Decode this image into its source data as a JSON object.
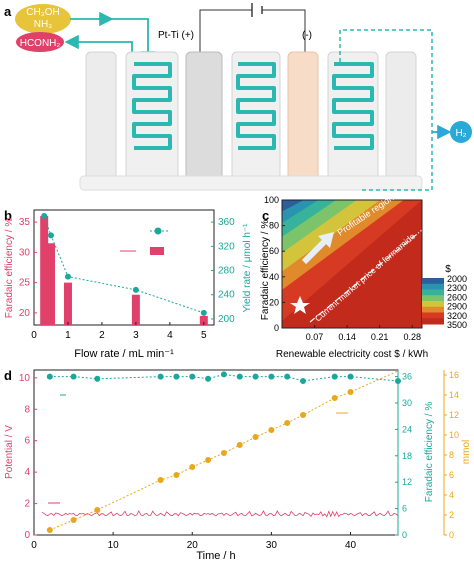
{
  "panels": {
    "a": {
      "label": "a",
      "feed_top": "CH₃OH",
      "feed_bottom": "NH₃",
      "product": "HCONH₂",
      "anode": "Pt-Ti (+)",
      "cathode": "(-)",
      "gas": "H₂",
      "colors": {
        "methanol": "#e8c43a",
        "formamide": "#e0406a",
        "flow": "#2bb8b0",
        "hydrogen": "#2aa8d8"
      }
    },
    "b": {
      "label": "b"
    },
    "c": {
      "label": "c"
    },
    "d": {
      "label": "d"
    }
  },
  "chart_data": [
    {
      "id": "b",
      "type": "bar",
      "x": [
        0.3,
        0.5,
        1,
        3,
        5
      ],
      "categories": [
        "0.3",
        "0.5",
        "1",
        "3",
        "5"
      ],
      "series": [
        {
          "axis": "left",
          "type": "bar",
          "values": [
            36,
            31.5,
            25,
            23,
            19.5
          ],
          "color": "#e0406a"
        },
        {
          "axis": "right",
          "type": "line",
          "values": [
            370,
            338,
            270,
            248,
            210
          ],
          "color": "#1aa89a"
        }
      ],
      "xlabel": "Flow rate / mL min⁻¹",
      "ylabel_left": "Faradaic efficiency / %",
      "ylabel_right": "Yield rate / μmol h⁻¹",
      "xlim": [
        0,
        5.3
      ],
      "ylim_left": [
        18,
        37
      ],
      "ylim_right": [
        190,
        380
      ],
      "xticks": [
        0,
        1,
        2,
        3,
        4,
        5
      ],
      "yticks_left": [
        20,
        25,
        30,
        35
      ],
      "yticks_right": [
        200,
        240,
        280,
        320,
        360
      ]
    },
    {
      "id": "c",
      "type": "heatmap",
      "xlabel": "Renewable electricity cost $ / kWh",
      "ylabel": "Faradaic efficiency / %",
      "xlim": [
        0,
        0.3
      ],
      "ylim": [
        0,
        100
      ],
      "xticks": [
        "0.07",
        "0.14",
        "0.21",
        "0.28"
      ],
      "yticks": [
        "0",
        "20",
        "40",
        "60",
        "80",
        "100"
      ],
      "annotations": [
        "Profitable region",
        "Current market price of formamide"
      ],
      "colorbar_title": "$",
      "colorbar_ticks": [
        "2000",
        "2300",
        "2600",
        "2900",
        "3200",
        "3500"
      ],
      "colorbar_colors": [
        "#2a5f9a",
        "#2a93b0",
        "#36b39a",
        "#7cc46a",
        "#d4c43c",
        "#e08a2c",
        "#d63a22",
        "#c22a1c"
      ]
    },
    {
      "id": "d",
      "type": "line",
      "xlabel": "Time / h",
      "ylabel_left": "Potential / V",
      "ylabel_right1": "Faradaic efficiency / %",
      "ylabel_right2": "mmol",
      "xlim": [
        0,
        46
      ],
      "ylim_left": [
        0,
        10.5
      ],
      "ylim_right1": [
        0,
        37.5
      ],
      "ylim_right2": [
        0,
        16.5
      ],
      "xticks": [
        0,
        10,
        20,
        30,
        40
      ],
      "yticks_left": [
        0,
        2,
        4,
        6,
        8,
        10
      ],
      "yticks_right1": [
        0,
        6,
        12,
        18,
        24,
        30,
        36
      ],
      "yticks_right2": [
        0,
        2,
        4,
        6,
        8,
        10,
        12,
        14,
        16
      ],
      "series": [
        {
          "axis": "right1",
          "color": "#1aa89a",
          "x": [
            2,
            5,
            8,
            16,
            18,
            20,
            22,
            24,
            26,
            28,
            30,
            32,
            34,
            38,
            40,
            46
          ],
          "y": [
            36,
            36,
            35.5,
            36,
            36,
            36,
            35.5,
            36.5,
            36,
            36,
            36,
            36,
            35,
            36,
            36,
            35
          ]
        },
        {
          "axis": "right2",
          "color": "#e8a81c",
          "x": [
            2,
            5,
            8,
            16,
            18,
            20,
            22,
            24,
            26,
            28,
            30,
            32,
            34,
            38,
            40
          ],
          "y": [
            0.5,
            1.5,
            2.5,
            5.5,
            6.0,
            6.8,
            7.5,
            8.2,
            9.0,
            9.8,
            10.5,
            11.2,
            12.0,
            13.7,
            14.3
          ]
        }
      ],
      "potential": {
        "axis": "left",
        "color": "#e0406a",
        "level": 1.3,
        "x_end": 46
      }
    }
  ]
}
